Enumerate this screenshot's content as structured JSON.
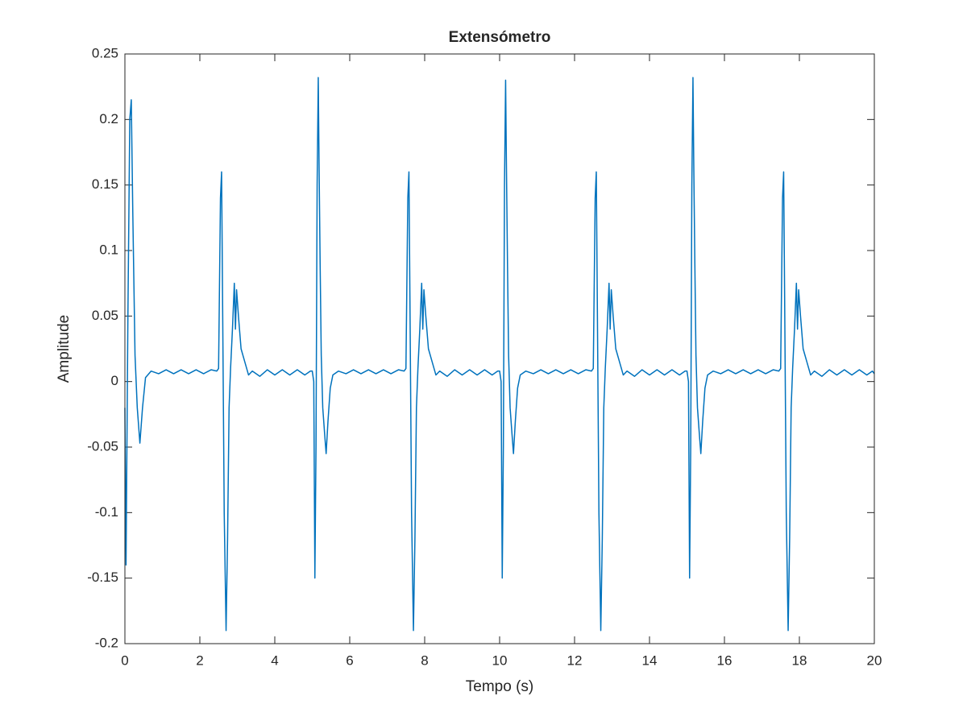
{
  "chart_data": {
    "type": "line",
    "title": "Extensómetro",
    "xlabel": "Tempo (s)",
    "ylabel": "Amplitude",
    "color": "#0072bd",
    "xlim": [
      0,
      20
    ],
    "xticks": [
      0,
      2,
      4,
      6,
      8,
      10,
      12,
      14,
      16,
      18,
      20
    ],
    "ylim": [
      -0.2,
      0.25
    ],
    "yticks": [
      -0.2,
      -0.15,
      -0.1,
      -0.05,
      0,
      0.05,
      0.1,
      0.15,
      0.2,
      0.25
    ],
    "x": [
      0,
      0.03,
      0.08,
      0.13,
      0.17,
      0.21,
      0.27,
      0.33,
      0.4,
      0.47,
      0.55,
      0.7,
      0.9,
      1.1,
      1.3,
      1.5,
      1.7,
      1.9,
      2.1,
      2.3,
      2.45,
      2.5,
      2.55,
      2.58,
      2.61,
      2.65,
      2.7,
      2.74,
      2.78,
      2.82,
      2.87,
      2.92,
      2.95,
      2.98,
      3.03,
      3.1,
      3.2,
      3.3,
      3.4,
      3.6,
      3.8,
      4.0,
      4.2,
      4.4,
      4.6,
      4.8,
      4.95,
      5,
      5.04,
      5.07,
      5.1,
      5.13,
      5.16,
      5.18,
      5.21,
      5.24,
      5.28,
      5.33,
      5.37,
      5.42,
      5.48,
      5.55,
      5.7,
      5.9,
      6.1,
      6.3,
      6.5,
      6.7,
      6.9,
      7.1,
      7.3,
      7.45,
      7.5,
      7.55,
      7.58,
      7.61,
      7.65,
      7.7,
      7.74,
      7.78,
      7.82,
      7.87,
      7.92,
      7.95,
      7.98,
      8.03,
      8.1,
      8.2,
      8.3,
      8.4,
      8.6,
      8.8,
      9.0,
      9.2,
      9.4,
      9.6,
      9.8,
      9.95,
      10,
      10.04,
      10.07,
      10.1,
      10.13,
      10.16,
      10.18,
      10.21,
      10.24,
      10.28,
      10.33,
      10.37,
      10.42,
      10.48,
      10.55,
      10.7,
      10.9,
      11.1,
      11.3,
      11.5,
      11.7,
      11.9,
      12.1,
      12.3,
      12.45,
      12.5,
      12.55,
      12.58,
      12.61,
      12.65,
      12.7,
      12.74,
      12.78,
      12.82,
      12.87,
      12.92,
      12.95,
      12.98,
      13.03,
      13.1,
      13.2,
      13.3,
      13.4,
      13.6,
      13.8,
      14.0,
      14.2,
      14.4,
      14.6,
      14.8,
      14.95,
      15,
      15.04,
      15.07,
      15.1,
      15.13,
      15.16,
      15.18,
      15.21,
      15.24,
      15.28,
      15.33,
      15.37,
      15.42,
      15.48,
      15.55,
      15.7,
      15.9,
      16.1,
      16.3,
      16.5,
      16.7,
      16.9,
      17.1,
      17.3,
      17.45,
      17.5,
      17.55,
      17.58,
      17.61,
      17.65,
      17.7,
      17.74,
      17.78,
      17.82,
      17.87,
      17.92,
      17.95,
      17.98,
      18.03,
      18.1,
      18.2,
      18.3,
      18.4,
      18.6,
      18.8,
      19.0,
      19.2,
      19.4,
      19.6,
      19.8,
      19.95,
      20
    ],
    "values": [
      -0.02,
      -0.14,
      0.05,
      0.2,
      0.215,
      0.13,
      0.02,
      -0.02,
      -0.047,
      -0.02,
      0.003,
      0.008,
      0.006,
      0.009,
      0.006,
      0.009,
      0.006,
      0.009,
      0.006,
      0.009,
      0.008,
      0.01,
      0.14,
      0.16,
      0.05,
      -0.1,
      -0.19,
      -0.12,
      -0.02,
      0.01,
      0.04,
      0.075,
      0.04,
      0.07,
      0.05,
      0.025,
      0.015,
      0.005,
      0.008,
      0.004,
      0.009,
      0.005,
      0.009,
      0.005,
      0.009,
      0.005,
      0.008,
      0.008,
      0,
      -0.15,
      -0.05,
      0.15,
      0.232,
      0.17,
      0.09,
      0.02,
      -0.02,
      -0.04,
      -0.055,
      -0.03,
      -0.005,
      0.005,
      0.008,
      0.006,
      0.009,
      0.006,
      0.009,
      0.006,
      0.009,
      0.006,
      0.009,
      0.008,
      0.01,
      0.14,
      0.16,
      0.05,
      -0.1,
      -0.19,
      -0.12,
      -0.02,
      0.01,
      0.04,
      0.075,
      0.04,
      0.07,
      0.05,
      0.025,
      0.015,
      0.005,
      0.008,
      0.004,
      0.009,
      0.005,
      0.009,
      0.005,
      0.009,
      0.005,
      0.008,
      0.008,
      0,
      -0.15,
      -0.05,
      0.15,
      0.23,
      0.17,
      0.09,
      0.02,
      -0.02,
      -0.04,
      -0.055,
      -0.03,
      -0.005,
      0.005,
      0.008,
      0.006,
      0.009,
      0.006,
      0.009,
      0.006,
      0.009,
      0.006,
      0.009,
      0.008,
      0.01,
      0.14,
      0.16,
      0.05,
      -0.1,
      -0.19,
      -0.12,
      -0.02,
      0.01,
      0.04,
      0.075,
      0.04,
      0.07,
      0.05,
      0.025,
      0.015,
      0.005,
      0.008,
      0.004,
      0.009,
      0.005,
      0.009,
      0.005,
      0.009,
      0.005,
      0.008,
      0.008,
      0,
      -0.15,
      -0.05,
      0.15,
      0.232,
      0.17,
      0.09,
      0.02,
      -0.02,
      -0.04,
      -0.055,
      -0.03,
      -0.005,
      0.005,
      0.008,
      0.006,
      0.009,
      0.006,
      0.009,
      0.006,
      0.009,
      0.006,
      0.009,
      0.008,
      0.01,
      0.14,
      0.16,
      0.05,
      -0.1,
      -0.19,
      -0.12,
      -0.02,
      0.01,
      0.04,
      0.075,
      0.04,
      0.07,
      0.05,
      0.025,
      0.015,
      0.005,
      0.008,
      0.004,
      0.009,
      0.005,
      0.009,
      0.005,
      0.009,
      0.005,
      0.008,
      0.006
    ]
  }
}
